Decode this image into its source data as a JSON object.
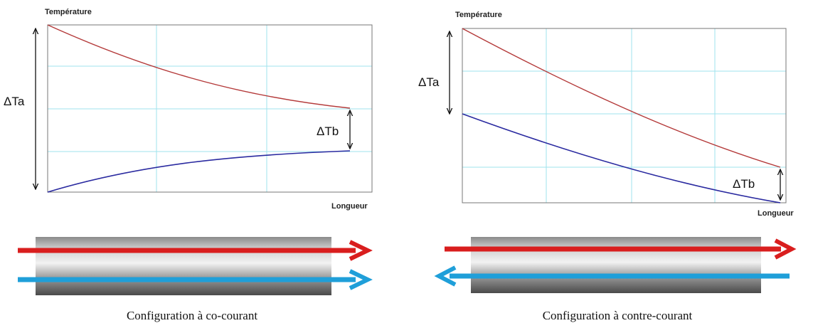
{
  "panels": [
    {
      "y_axis_label": "Température",
      "x_axis_label": "Longueur",
      "delta_a": "ΔTa",
      "delta_b": "ΔTb",
      "caption": "Configuration à co-courant"
    },
    {
      "y_axis_label": "Température",
      "x_axis_label": "Longueur",
      "delta_a": "ΔTa",
      "delta_b": "ΔTb",
      "caption": "Configuration à contre-courant"
    }
  ]
}
